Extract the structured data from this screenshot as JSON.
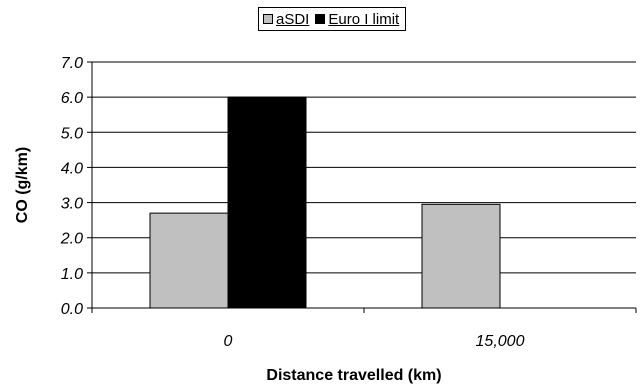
{
  "chart_data": {
    "type": "bar",
    "categories": [
      "0",
      "15,000"
    ],
    "series": [
      {
        "name": "aSDI",
        "values": [
          2.7,
          2.95
        ],
        "color": "#c0c0c0"
      },
      {
        "name": "Euro I limit",
        "values": [
          6.0,
          null
        ],
        "color": "#000000"
      }
    ],
    "ylabel": "CO (g/km)",
    "xlabel": "Distance travelled (km)",
    "ylim": [
      0,
      7
    ],
    "yticks": [
      "0.0",
      "1.0",
      "2.0",
      "3.0",
      "4.0",
      "5.0",
      "6.0",
      "7.0"
    ],
    "grid": true,
    "legend_position": "top"
  }
}
